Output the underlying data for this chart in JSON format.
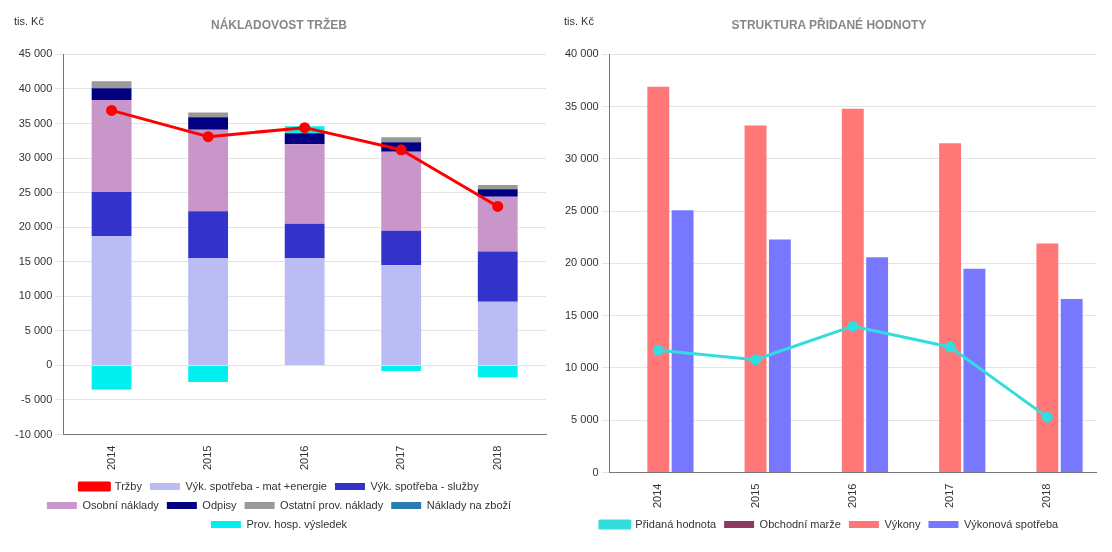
{
  "chart_data": [
    {
      "type": "bar",
      "title": "NÁKLADOVOST TRŽEB",
      "ylabel": "tis. Kč",
      "stacked": true,
      "categories": [
        "2014",
        "2015",
        "2016",
        "2017",
        "2018"
      ],
      "series": [
        {
          "name": "Výk. spotřeba - mat +energie",
          "color": "#bcbcf5",
          "values": [
            18700,
            15500,
            15500,
            14500,
            9200
          ]
        },
        {
          "name": "Výk. spotřeba - služby",
          "color": "#3333cc",
          "values": [
            6400,
            6800,
            5000,
            5000,
            7300
          ]
        },
        {
          "name": "Osobní náklady",
          "color": "#c896c8",
          "values": [
            13300,
            11800,
            11500,
            11400,
            7900
          ]
        },
        {
          "name": "Odpisy",
          "color": "#000080",
          "values": [
            1700,
            1800,
            1600,
            1400,
            1100
          ]
        },
        {
          "name": "Ostatní prov. náklady",
          "color": "#999999",
          "values": [
            1000,
            700,
            null,
            700,
            600
          ]
        },
        {
          "name": "Náklady na zboží",
          "color": "#2b7bb0",
          "values": [
            0,
            0,
            0,
            0,
            0
          ]
        },
        {
          "name": "Prov. hosp. výsledek",
          "color": "#00f0f0",
          "values": [
            -3500,
            -2400,
            1000,
            -800,
            -1700
          ]
        },
        {
          "name": "Tržby",
          "type": "line",
          "color": "#ff0000",
          "marker": "circle",
          "values": [
            36900,
            33100,
            34400,
            31200,
            23000
          ]
        }
      ],
      "ylim": [
        -10000,
        45000
      ],
      "yticks": [
        {
          "value": -10000,
          "label": "-10 000"
        },
        {
          "value": -5000,
          "label": "-5 000"
        },
        0,
        {
          "value": 5000,
          "label": "5 000"
        },
        {
          "value": 10000,
          "label": "10 000"
        },
        {
          "value": 15000,
          "label": "15 000"
        },
        {
          "value": 20000,
          "label": "20 000"
        },
        {
          "value": 25000,
          "label": "25 000"
        },
        {
          "value": 30000,
          "label": "30 000"
        },
        {
          "value": 35000,
          "label": "35 000"
        },
        {
          "value": 40000,
          "label": "40 000"
        },
        {
          "value": 45000,
          "label": "45 000"
        }
      ],
      "grid": "y",
      "legend": "bottom"
    },
    {
      "type": "bar",
      "title": "STRUKTURA PŘIDANÉ HODNOTY",
      "ylabel": "tis. Kč",
      "categories": [
        "2014",
        "2015",
        "2016",
        "2017",
        "2018"
      ],
      "series": [
        {
          "name": "Obchodní marže",
          "color": "#8e3a5e",
          "values": [
            0,
            0,
            0,
            0,
            0
          ]
        },
        {
          "name": "Výkony",
          "color": "#ff7777",
          "values": [
            36900,
            33200,
            34800,
            31500,
            21900
          ]
        },
        {
          "name": "Výkonová spotřeba",
          "color": "#7777ff",
          "values": [
            25100,
            22300,
            20600,
            19500,
            16600
          ]
        },
        {
          "name": "Přidaná hodnota",
          "type": "line",
          "color": "#33dddd",
          "marker": "circle",
          "values": [
            11700,
            10800,
            14000,
            12000,
            5300
          ]
        }
      ],
      "ylim": [
        0,
        40000
      ],
      "yticks": [
        0,
        {
          "value": 5000,
          "label": "5 000"
        },
        {
          "value": 10000,
          "label": "10 000"
        },
        {
          "value": 15000,
          "label": "15 000"
        },
        {
          "value": 20000,
          "label": "20 000"
        },
        {
          "value": 25000,
          "label": "25 000"
        },
        {
          "value": 30000,
          "label": "30 000"
        },
        {
          "value": 35000,
          "label": "35 000"
        },
        {
          "value": 40000,
          "label": "40 000"
        }
      ],
      "grid": "y",
      "legend": "bottom"
    }
  ]
}
